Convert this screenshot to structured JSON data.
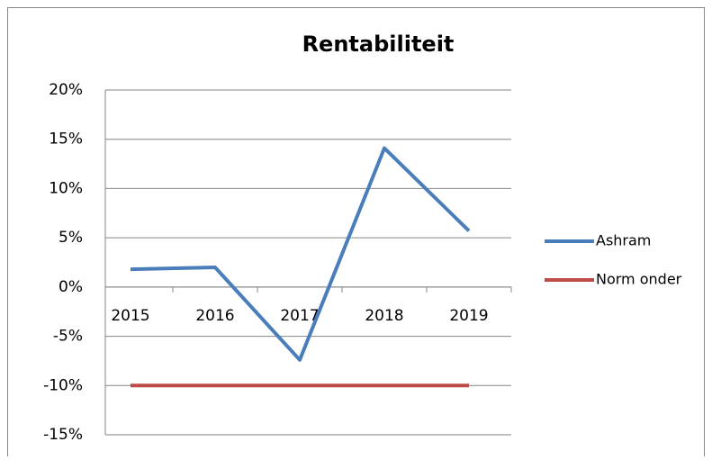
{
  "chart_data": {
    "type": "line",
    "title": "Rentabiliteit",
    "categories": [
      "2015",
      "2016",
      "2017",
      "2018",
      "2019"
    ],
    "series": [
      {
        "name": "Ashram",
        "color": "#4a7ebb",
        "values": [
          1.8,
          2.0,
          -7.4,
          14.1,
          5.7
        ]
      },
      {
        "name": "Norm onder",
        "color": "#be4b48",
        "values": [
          -10,
          -10,
          -10,
          -10,
          -10
        ]
      }
    ],
    "ylim": [
      -15,
      20
    ],
    "yticks": [
      {
        "value": -15,
        "label": "-15%"
      },
      {
        "value": -10,
        "label": "-10%"
      },
      {
        "value": -5,
        "label": "-5%"
      },
      {
        "value": 0,
        "label": "0%"
      },
      {
        "value": 5,
        "label": "5%"
      },
      {
        "value": 10,
        "label": "10%"
      },
      {
        "value": 15,
        "label": "15%"
      },
      {
        "value": 20,
        "label": "20%"
      }
    ],
    "grid": true,
    "legend": "right"
  }
}
